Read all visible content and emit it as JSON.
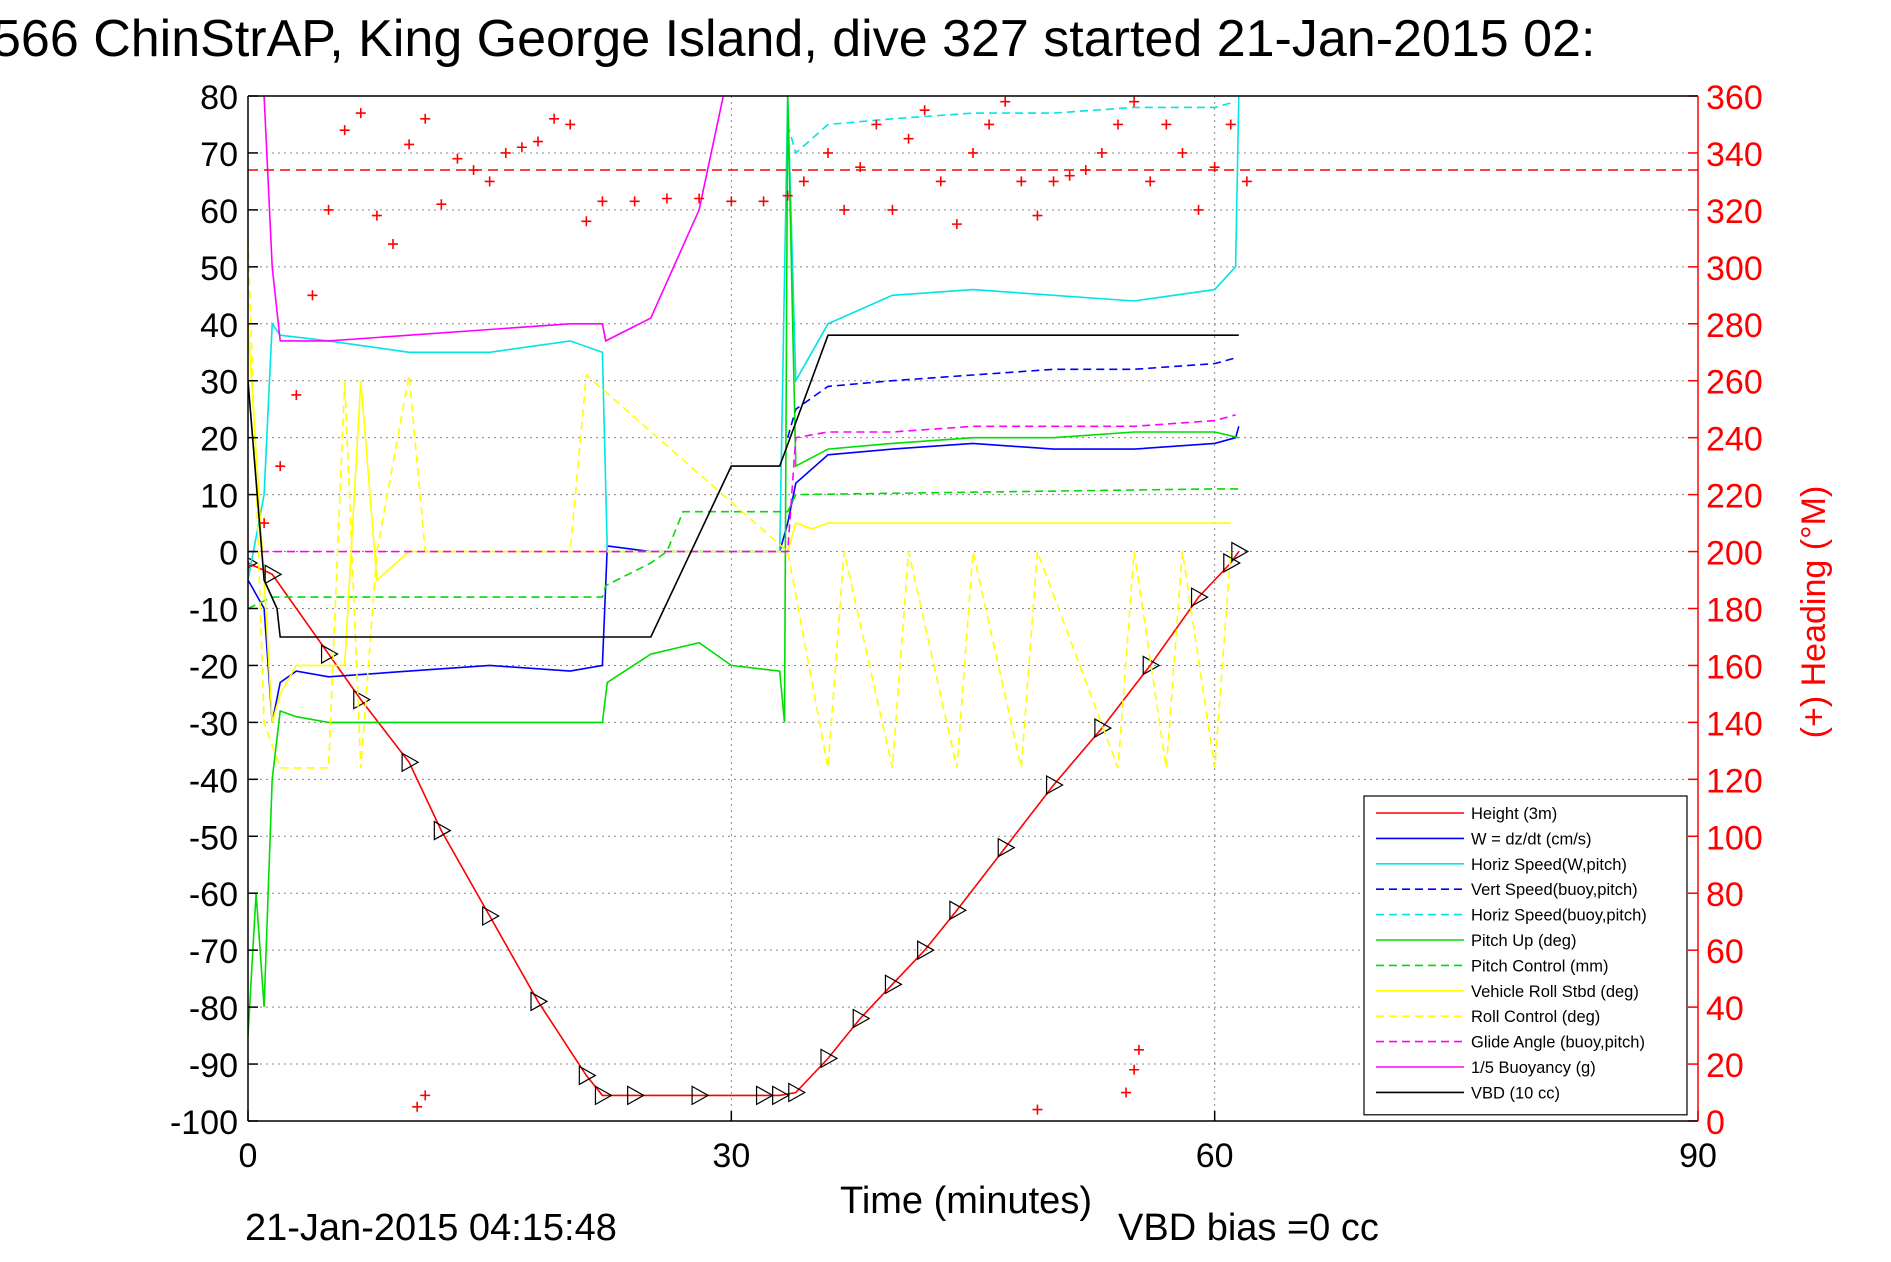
{
  "chart_data": {
    "type": "line",
    "title": "566 ChinStrAP, King George Island, dive 327 started 21-Jan-2015 02:",
    "xlabel": "Time (minutes)",
    "ylabel": "",
    "y2label": "(+) Heading (°M)",
    "xlim": [
      0,
      90
    ],
    "ylim": [
      -100,
      80
    ],
    "y2lim": [
      0,
      360
    ],
    "xticks": [
      "0",
      "30",
      "60",
      "90"
    ],
    "yticks": [
      "80",
      "70",
      "60",
      "50",
      "40",
      "30",
      "20",
      "10",
      "0",
      "-10",
      "-20",
      "-30",
      "-40",
      "-50",
      "-60",
      "-70",
      "-80",
      "-90",
      "-100"
    ],
    "y2ticks": [
      "360",
      "340",
      "320",
      "300",
      "280",
      "260",
      "240",
      "220",
      "200",
      "180",
      "160",
      "140",
      "120",
      "100",
      "80",
      "60",
      "40",
      "20",
      "0"
    ],
    "grid": true,
    "legend_position": "bottom-right",
    "footer_left": "21-Jan-2015 04:15:48",
    "footer_right": "VBD bias =0 cc",
    "heading_reference": 334,
    "series": [
      {
        "name": "Height (3m)",
        "color": "#ff0000",
        "style": "solid",
        "markers": "triangle",
        "x": [
          0,
          1.5,
          5,
          7,
          10,
          12,
          15,
          18,
          21,
          22,
          24,
          28,
          32,
          33,
          34,
          36,
          38,
          40,
          42,
          44,
          47,
          50,
          53,
          56,
          59,
          61,
          61.5
        ],
        "y": [
          -2,
          -4,
          -18,
          -26,
          -37,
          -49,
          -64,
          -79,
          -92,
          -95.5,
          -95.5,
          -95.5,
          -95.5,
          -95.5,
          -95,
          -89,
          -82,
          -76,
          -70,
          -63,
          -52,
          -41,
          -31,
          -20,
          -8,
          -2,
          0
        ]
      },
      {
        "name": "W = dz/dt (cm/s)",
        "color": "#0000ff",
        "style": "solid",
        "x": [
          0,
          1,
          1.5,
          2,
          3,
          5,
          10,
          15,
          20,
          22,
          22.3,
          25,
          30,
          33,
          33.5,
          34,
          36,
          40,
          45,
          50,
          55,
          60,
          61.3,
          61.5
        ],
        "y": [
          -5,
          -10,
          -30,
          -23,
          -21,
          -22,
          -21,
          -20,
          -21,
          -20,
          1,
          0,
          0,
          0,
          5,
          12,
          17,
          18,
          19,
          18,
          18,
          19,
          20,
          22
        ]
      },
      {
        "name": "Horiz Speed(W,pitch)",
        "color": "#00e5e5",
        "style": "solid",
        "x": [
          0,
          1,
          1.5,
          2,
          5,
          10,
          15,
          20,
          22,
          22.3,
          25,
          30,
          33,
          33.5,
          34,
          36,
          40,
          45,
          50,
          55,
          60,
          61.3,
          61.5
        ],
        "y": [
          -5,
          10,
          40,
          38,
          37,
          35,
          35,
          37,
          35,
          0,
          0,
          0,
          0,
          80,
          30,
          40,
          45,
          46,
          45,
          44,
          46,
          50,
          80
        ]
      },
      {
        "name": "Vert Speed(buoy,pitch)",
        "color": "#0000ff",
        "style": "dashed",
        "x": [
          33.5,
          34,
          36,
          40,
          45,
          50,
          55,
          60,
          61.3
        ],
        "y": [
          20,
          25,
          29,
          30,
          31,
          32,
          32,
          33,
          34
        ]
      },
      {
        "name": "Horiz Speed(buoy,pitch)",
        "color": "#00e5e5",
        "style": "dashed",
        "x": [
          33.5,
          34,
          36,
          40,
          45,
          50,
          55,
          60,
          61.3
        ],
        "y": [
          75,
          70,
          75,
          76,
          77,
          77,
          78,
          78,
          79
        ]
      },
      {
        "name": "Pitch Up (deg)",
        "color": "#00dd00",
        "style": "solid",
        "x": [
          0,
          0.5,
          1,
          1.5,
          2,
          3,
          5,
          10,
          15,
          20,
          22,
          22.3,
          25,
          28,
          30,
          33,
          33.3,
          33.5,
          34,
          36,
          40,
          45,
          50,
          55,
          60,
          61.5
        ],
        "y": [
          -85,
          -60,
          -80,
          -40,
          -28,
          -29,
          -30,
          -30,
          -30,
          -30,
          -30,
          -23,
          -18,
          -16,
          -20,
          -21,
          -30,
          80,
          15,
          18,
          19,
          20,
          20,
          21,
          21,
          20
        ]
      },
      {
        "name": "Pitch Control (mm)",
        "color": "#00dd00",
        "style": "dashed",
        "x": [
          0,
          1.5,
          2,
          22,
          22.2,
          25,
          26,
          27,
          32,
          33.5,
          34,
          60,
          61.5
        ],
        "y": [
          -10,
          -8,
          -8,
          -8,
          -6,
          -2,
          0,
          7,
          7,
          7,
          10,
          11,
          11
        ]
      },
      {
        "name": "Vehicle Roll Stbd (deg)",
        "color": "#ffff00",
        "style": "solid",
        "x": [
          0,
          1,
          1.5,
          2,
          3,
          6,
          7,
          8,
          10,
          12,
          20,
          22,
          33.5,
          34,
          35,
          36,
          40,
          45,
          50,
          55,
          60,
          61
        ],
        "y": [
          40,
          -5,
          -30,
          -25,
          -20,
          -20,
          30,
          -5,
          0,
          0,
          0,
          0,
          0,
          5,
          4,
          5,
          5,
          5,
          5,
          5,
          5,
          5
        ]
      },
      {
        "name": "Roll Control (deg)",
        "color": "#ffff00",
        "style": "dashed",
        "x": [
          0,
          1,
          2,
          5,
          6,
          7,
          8,
          10,
          11,
          20,
          21,
          33.5,
          36,
          37,
          40,
          41,
          44,
          45,
          48,
          49,
          54,
          55,
          57,
          58,
          60,
          61
        ],
        "y": [
          55,
          -30,
          -38,
          -38,
          30,
          -38,
          0,
          31,
          0,
          0,
          31,
          0,
          -38,
          0,
          -38,
          0,
          -38,
          0,
          -38,
          0,
          -38,
          0,
          -38,
          0,
          -38,
          0
        ]
      },
      {
        "name": "Glide Angle (buoy,pitch)",
        "color": "#ff00ff",
        "style": "dashed",
        "x": [
          0,
          10,
          20,
          30,
          33.5,
          34,
          36,
          40,
          45,
          50,
          55,
          60,
          61.3
        ],
        "y": [
          0,
          0,
          0,
          0,
          0,
          20,
          21,
          21,
          22,
          22,
          22,
          23,
          24
        ]
      },
      {
        "name": "1/5 Buoyancy (g)",
        "color": "#ff00ff",
        "style": "solid",
        "x": [
          1,
          1.5,
          2,
          5,
          10,
          15,
          20,
          22,
          22.2,
          25,
          28,
          29.5
        ],
        "y": [
          80,
          50,
          37,
          37,
          38,
          39,
          40,
          40,
          37,
          41,
          60,
          80
        ]
      },
      {
        "name": "VBD (10 cc)",
        "color": "#000000",
        "style": "solid",
        "x": [
          0,
          1,
          1.8,
          2,
          10,
          20,
          25,
          30,
          33,
          36,
          40,
          50,
          60,
          61.5
        ],
        "y": [
          30,
          -5,
          -10,
          -15,
          -15,
          -15,
          -15,
          15,
          15,
          38,
          38,
          38,
          38,
          38
        ]
      }
    ],
    "heading_points": {
      "name": "(+) Heading",
      "color": "#ff0000",
      "x": [
        0,
        1,
        2,
        3,
        4,
        5,
        6,
        7,
        8,
        9,
        10,
        11,
        12,
        13,
        14,
        15,
        16,
        17,
        18,
        19,
        20,
        21,
        22,
        24,
        26,
        28,
        30,
        32,
        33.5,
        34.5,
        36,
        37,
        38,
        39,
        40,
        41,
        42,
        43,
        44,
        45,
        46,
        47,
        48,
        49,
        50,
        51,
        52,
        53,
        54,
        55,
        56,
        57,
        58,
        59,
        60,
        61,
        62,
        10.5,
        11,
        49,
        54.5,
        55,
        55.3
      ],
      "y": [
        195,
        210,
        230,
        255,
        290,
        320,
        348,
        354,
        318,
        308,
        343,
        352,
        322,
        338,
        334,
        330,
        340,
        342,
        344,
        352,
        350,
        316,
        323,
        323,
        324,
        324,
        323,
        323,
        325,
        330,
        340,
        320,
        335,
        350,
        320,
        345,
        355,
        330,
        315,
        340,
        350,
        358,
        330,
        318,
        330,
        332,
        334,
        340,
        350,
        358,
        330,
        350,
        340,
        320,
        335,
        350,
        330,
        5,
        9,
        4,
        10,
        18,
        25
      ]
    }
  }
}
